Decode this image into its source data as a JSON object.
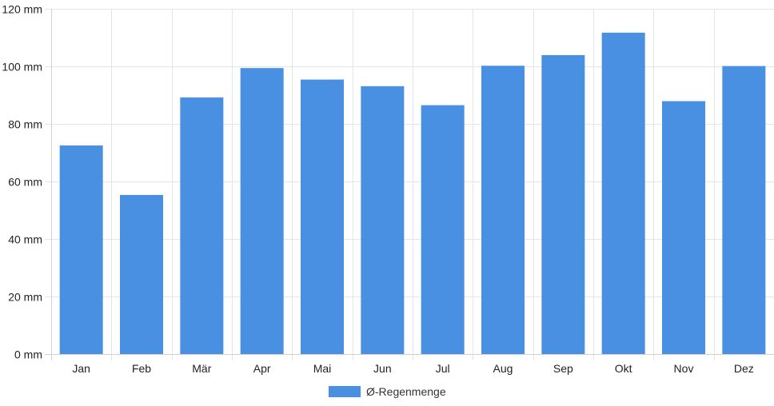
{
  "chart_data": {
    "type": "bar",
    "categories": [
      "Jan",
      "Feb",
      "Mär",
      "Apr",
      "Mai",
      "Jun",
      "Jul",
      "Aug",
      "Sep",
      "Okt",
      "Nov",
      "Dez"
    ],
    "series": [
      {
        "name": "Ø-Regenmenge",
        "values": [
          72.5,
          55.3,
          89.2,
          99.4,
          95.4,
          93.1,
          86.5,
          100.2,
          103.9,
          111.7,
          87.9,
          100.1
        ],
        "color": "#4a90e2"
      }
    ],
    "unit": "mm",
    "ylim": [
      0,
      120
    ],
    "yticks": [
      0,
      20,
      40,
      60,
      80,
      100,
      120
    ],
    "ytick_labels": [
      "0 mm",
      "20 mm",
      "40 mm",
      "60 mm",
      "80 mm",
      "100 mm",
      "120 mm"
    ],
    "grid": true,
    "legend_position": "bottom-center"
  }
}
